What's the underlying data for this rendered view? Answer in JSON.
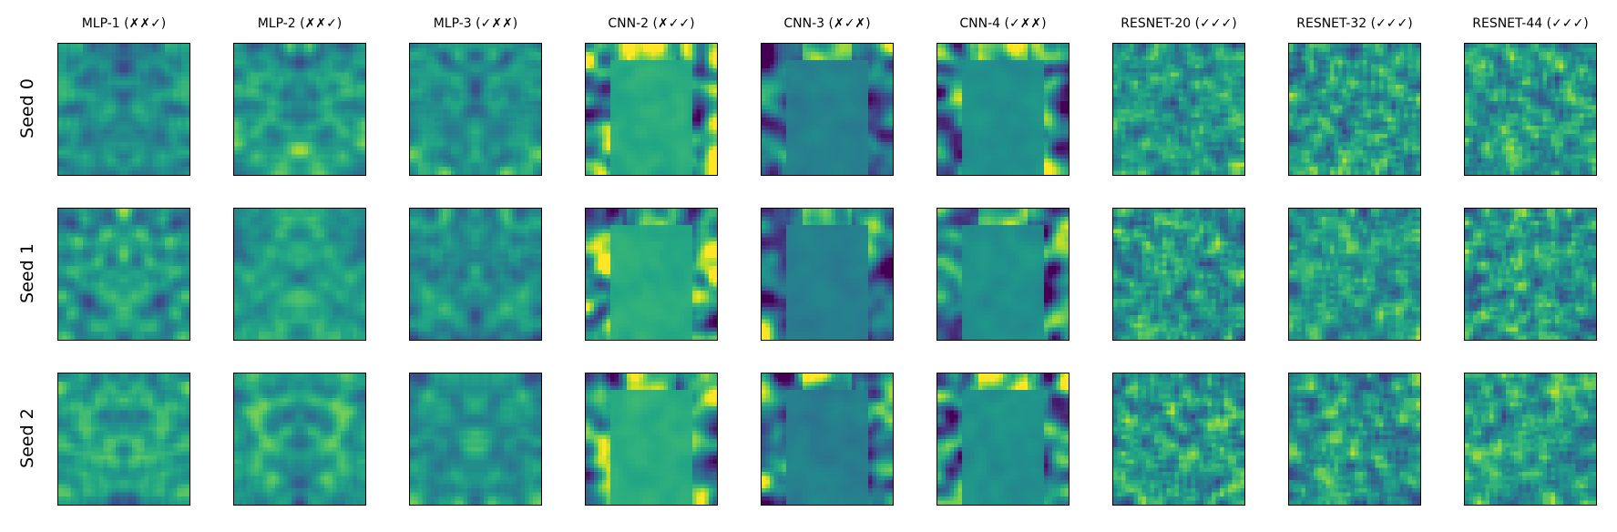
{
  "chart_data": {
    "type": "heatmap",
    "layout": "grid",
    "rows": [
      "Seed 0",
      "Seed 1",
      "Seed 2"
    ],
    "columns": [
      "MLP-1 (✗✗✓)",
      "MLP-2 (✗✗✓)",
      "MLP-3 (✓✗✗)",
      "CNN-2 (✗✓✓)",
      "CNN-3 (✗✓✗)",
      "CNN-4 (✓✗✗)",
      "RESNET-20 (✓✓✓)",
      "RESNET-32 (✓✓✓)",
      "RESNET-44 (✓✓✓)"
    ],
    "colormap": "viridis",
    "grid": false,
    "axes_ticks": false
  }
}
